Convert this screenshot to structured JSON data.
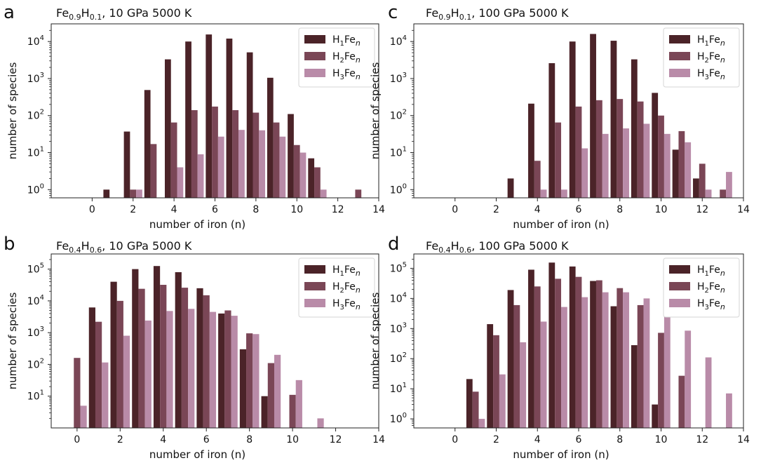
{
  "figure": {
    "series_names": [
      "H1Fen",
      "H2Fen",
      "H3Fen"
    ],
    "colors": [
      "#4b2328",
      "#7a4656",
      "#b98ba8"
    ],
    "xlabel": "number of iron (n)",
    "ylabel": "number of species"
  },
  "chart_data": [
    {
      "type": "bar",
      "panel": "a",
      "title": "Fe0.9H0.1, 10 GPa 5000 K",
      "title_parts": {
        "base1": "Fe",
        "sub1": "0.9",
        "base2": "H",
        "sub2": "0.1",
        "rest": ", 10 GPa 5000 K"
      },
      "xlabel": "number of iron (n)",
      "ylabel": "number of species",
      "xlim": [
        -2,
        14
      ],
      "ylim": [
        0.6,
        30000
      ],
      "yscale": "log",
      "x_ticks": [
        0,
        2,
        4,
        6,
        8,
        10,
        12,
        14
      ],
      "y_ticks": [
        1,
        10,
        100,
        1000,
        10000
      ],
      "y_tick_labels": [
        {
          "base": "10",
          "exp": "0"
        },
        {
          "base": "10",
          "exp": "1"
        },
        {
          "base": "10",
          "exp": "2"
        },
        {
          "base": "10",
          "exp": "3"
        },
        {
          "base": "10",
          "exp": "4"
        }
      ],
      "legend": "top-right",
      "series": [
        {
          "name": "H1Fen",
          "values": [
            [
              1,
              1
            ],
            [
              2,
              37
            ],
            [
              3,
              490
            ],
            [
              4,
              3300
            ],
            [
              5,
              10000
            ],
            [
              6,
              15500
            ],
            [
              7,
              12000
            ],
            [
              8,
              5100
            ],
            [
              9,
              1050
            ],
            [
              10,
              110
            ],
            [
              11,
              7
            ]
          ]
        },
        {
          "name": "H2Fen",
          "values": [
            [
              2,
              1
            ],
            [
              3,
              17
            ],
            [
              4,
              65
            ],
            [
              5,
              140
            ],
            [
              6,
              175
            ],
            [
              7,
              140
            ],
            [
              8,
              120
            ],
            [
              9,
              65
            ],
            [
              10,
              16
            ],
            [
              11,
              4
            ],
            [
              13,
              1
            ]
          ]
        },
        {
          "name": "H3Fen",
          "values": [
            [
              2,
              1
            ],
            [
              4,
              4
            ],
            [
              5,
              9
            ],
            [
              6,
              27
            ],
            [
              7,
              41
            ],
            [
              8,
              40
            ],
            [
              9,
              27
            ],
            [
              10,
              10
            ],
            [
              11,
              1
            ]
          ]
        }
      ]
    },
    {
      "type": "bar",
      "panel": "c",
      "title": "Fe0.9H0.1, 100 GPa 5000 K",
      "title_parts": {
        "base1": "Fe",
        "sub1": "0.9",
        "base2": "H",
        "sub2": "0.1",
        "rest": ", 100 GPa 5000 K"
      },
      "xlabel": "number of iron (n)",
      "ylabel": "number of species",
      "xlim": [
        -2,
        14
      ],
      "ylim": [
        0.6,
        30000
      ],
      "yscale": "log",
      "x_ticks": [
        0,
        2,
        4,
        6,
        8,
        10,
        12,
        14
      ],
      "y_ticks": [
        1,
        10,
        100,
        1000,
        10000
      ],
      "y_tick_labels": [
        {
          "base": "10",
          "exp": "0"
        },
        {
          "base": "10",
          "exp": "1"
        },
        {
          "base": "10",
          "exp": "2"
        },
        {
          "base": "10",
          "exp": "3"
        },
        {
          "base": "10",
          "exp": "4"
        }
      ],
      "legend": "top-right",
      "series": [
        {
          "name": "H1Fen",
          "values": [
            [
              3,
              2
            ],
            [
              4,
              210
            ],
            [
              5,
              2600
            ],
            [
              6,
              10000
            ],
            [
              7,
              16000
            ],
            [
              8,
              10500
            ],
            [
              9,
              3300
            ],
            [
              10,
              410
            ],
            [
              11,
              12
            ],
            [
              12,
              2
            ]
          ]
        },
        {
          "name": "H2Fen",
          "values": [
            [
              4,
              6
            ],
            [
              5,
              65
            ],
            [
              6,
              175
            ],
            [
              7,
              260
            ],
            [
              8,
              280
            ],
            [
              9,
              240
            ],
            [
              10,
              100
            ],
            [
              11,
              38
            ],
            [
              12,
              5
            ],
            [
              13,
              1
            ]
          ]
        },
        {
          "name": "H3Fen",
          "values": [
            [
              4,
              1
            ],
            [
              5,
              1
            ],
            [
              6,
              13
            ],
            [
              7,
              32
            ],
            [
              8,
              45
            ],
            [
              9,
              60
            ],
            [
              10,
              32
            ],
            [
              11,
              19
            ],
            [
              12,
              1
            ],
            [
              13,
              3
            ]
          ]
        }
      ]
    },
    {
      "type": "bar",
      "panel": "b",
      "title": "Fe0.4H0.6, 10 GPa 5000 K",
      "title_parts": {
        "base1": "Fe",
        "sub1": "0.4",
        "base2": "H",
        "sub2": "0.6",
        "rest": ", 10 GPa 5000 K"
      },
      "xlabel": "number of iron (n)",
      "ylabel": "number of species",
      "xlim": [
        -1.2,
        14
      ],
      "ylim": [
        1,
        300000
      ],
      "yscale": "log",
      "x_ticks": [
        0,
        2,
        4,
        6,
        8,
        10,
        12,
        14
      ],
      "y_ticks": [
        10,
        100,
        1000,
        10000,
        100000
      ],
      "y_tick_labels": [
        {
          "base": "10",
          "exp": "1"
        },
        {
          "base": "10",
          "exp": "2"
        },
        {
          "base": "10",
          "exp": "3"
        },
        {
          "base": "10",
          "exp": "4"
        },
        {
          "base": "10",
          "exp": "5"
        }
      ],
      "legend": "top-right",
      "series": [
        {
          "name": "H1Fen",
          "values": [
            [
              1,
              6200
            ],
            [
              2,
              40000
            ],
            [
              3,
              100000
            ],
            [
              4,
              125000
            ],
            [
              5,
              80000
            ],
            [
              6,
              25000
            ],
            [
              7,
              4000
            ],
            [
              8,
              300
            ],
            [
              9,
              10
            ]
          ]
        },
        {
          "name": "H2Fen",
          "values": [
            [
              0,
              160
            ],
            [
              1,
              2200
            ],
            [
              2,
              10000
            ],
            [
              3,
              24000
            ],
            [
              4,
              32000
            ],
            [
              5,
              26000
            ],
            [
              6,
              15000
            ],
            [
              7,
              5000
            ],
            [
              8,
              950
            ],
            [
              9,
              110
            ],
            [
              10,
              11
            ]
          ]
        },
        {
          "name": "H3Fen",
          "values": [
            [
              0,
              5
            ],
            [
              1,
              115
            ],
            [
              2,
              800
            ],
            [
              3,
              2400
            ],
            [
              4,
              4800
            ],
            [
              5,
              5600
            ],
            [
              6,
              4500
            ],
            [
              7,
              3400
            ],
            [
              8,
              900
            ],
            [
              9,
              200
            ],
            [
              10,
              32
            ],
            [
              11,
              2
            ]
          ]
        }
      ]
    },
    {
      "type": "bar",
      "panel": "d",
      "title": "Fe0.4H0.6, 100 GPa 5000 K",
      "title_parts": {
        "base1": "Fe",
        "sub1": "0.4",
        "base2": "H",
        "sub2": "0.6",
        "rest": ", 100 GPa 5000 K"
      },
      "xlabel": "number of iron (n)",
      "ylabel": "number of species",
      "xlim": [
        -2,
        14
      ],
      "ylim": [
        0.5,
        300000
      ],
      "yscale": "log",
      "x_ticks": [
        0,
        2,
        4,
        6,
        8,
        10,
        12,
        14
      ],
      "y_ticks": [
        1,
        10,
        100,
        1000,
        10000,
        100000
      ],
      "y_tick_labels": [
        {
          "base": "10",
          "exp": "0"
        },
        {
          "base": "10",
          "exp": "1"
        },
        {
          "base": "10",
          "exp": "2"
        },
        {
          "base": "10",
          "exp": "3"
        },
        {
          "base": "10",
          "exp": "4"
        },
        {
          "base": "10",
          "exp": "5"
        }
      ],
      "legend": "top-right",
      "series": [
        {
          "name": "H1Fen",
          "values": [
            [
              1,
              21
            ],
            [
              2,
              1400
            ],
            [
              3,
              19000
            ],
            [
              4,
              90000
            ],
            [
              5,
              155000
            ],
            [
              6,
              115000
            ],
            [
              7,
              38000
            ],
            [
              8,
              5500
            ],
            [
              9,
              280
            ],
            [
              10,
              3
            ]
          ]
        },
        {
          "name": "H2Fen",
          "values": [
            [
              1,
              8
            ],
            [
              2,
              600
            ],
            [
              3,
              6000
            ],
            [
              4,
              25000
            ],
            [
              5,
              45000
            ],
            [
              6,
              52000
            ],
            [
              7,
              40000
            ],
            [
              8,
              22000
            ],
            [
              9,
              6000
            ],
            [
              10,
              720
            ],
            [
              11,
              27
            ]
          ]
        },
        {
          "name": "H3Fen",
          "values": [
            [
              1,
              1
            ],
            [
              2,
              30
            ],
            [
              3,
              350
            ],
            [
              4,
              1700
            ],
            [
              5,
              5200
            ],
            [
              6,
              11000
            ],
            [
              7,
              16000
            ],
            [
              8,
              16000
            ],
            [
              9,
              10000
            ],
            [
              10,
              3800
            ],
            [
              11,
              850
            ],
            [
              12,
              110
            ],
            [
              13,
              7
            ]
          ]
        }
      ]
    }
  ]
}
